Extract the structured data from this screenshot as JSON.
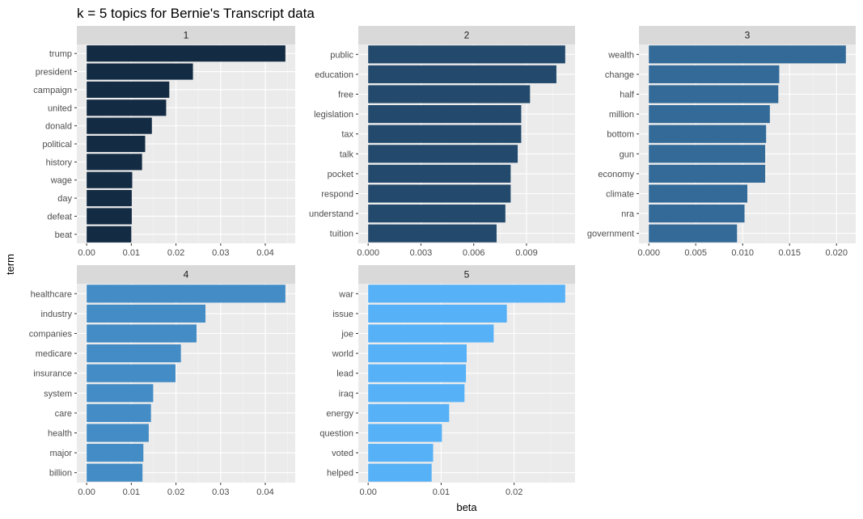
{
  "chart_data": {
    "type": "bar",
    "orientation": "horizontal",
    "title": "k = 5 topics for Bernie's Transcript data",
    "xlabel": "beta",
    "ylabel": "term",
    "grid": true,
    "legend": "none",
    "panels": [
      {
        "label": "1",
        "color": "#132B43",
        "xlim": [
          -0.0022,
          0.0467
        ],
        "ticks": [
          0,
          0.01,
          0.02,
          0.03,
          0.04
        ],
        "tick_labels": [
          "0.00",
          "0.01",
          "0.02",
          "0.03",
          "0.04"
        ],
        "terms": [
          "trump",
          "president",
          "campaign",
          "united",
          "donald",
          "political",
          "history",
          "wage",
          "day",
          "defeat",
          "beat"
        ],
        "values": [
          0.0445,
          0.0238,
          0.0185,
          0.0178,
          0.0146,
          0.0131,
          0.0124,
          0.0102,
          0.0101,
          0.0101,
          0.01
        ]
      },
      {
        "label": "2",
        "color": "#234A6C",
        "xlim": [
          -0.00056,
          0.01176
        ],
        "ticks": [
          0,
          0.003,
          0.006,
          0.009
        ],
        "tick_labels": [
          "0.000",
          "0.003",
          "0.006",
          "0.009"
        ],
        "terms": [
          "public",
          "education",
          "free",
          "legislation",
          "tax",
          "talk",
          "pocket",
          "respond",
          "understand",
          "tuition"
        ],
        "values": [
          0.0112,
          0.0107,
          0.0092,
          0.0087,
          0.0087,
          0.0085,
          0.0081,
          0.0081,
          0.0078,
          0.0073
        ]
      },
      {
        "label": "3",
        "color": "#336A98",
        "xlim": [
          -0.00105,
          0.02205
        ],
        "ticks": [
          0,
          0.005,
          0.01,
          0.015,
          0.02
        ],
        "tick_labels": [
          "0.000",
          "0.005",
          "0.010",
          "0.015",
          "0.020"
        ],
        "terms": [
          "wealth",
          "change",
          "half",
          "million",
          "bottom",
          "gun",
          "economy",
          "climate",
          "nra",
          "government"
        ],
        "values": [
          0.021,
          0.0139,
          0.0138,
          0.0129,
          0.0125,
          0.0124,
          0.0124,
          0.0105,
          0.0102,
          0.0094
        ]
      },
      {
        "label": "4",
        "color": "#438CC5",
        "xlim": [
          -0.0022,
          0.0467
        ],
        "ticks": [
          0,
          0.01,
          0.02,
          0.03,
          0.04
        ],
        "tick_labels": [
          "0.00",
          "0.01",
          "0.02",
          "0.03",
          "0.04"
        ],
        "terms": [
          "healthcare",
          "industry",
          "companies",
          "medicare",
          "insurance",
          "system",
          "care",
          "health",
          "major",
          "billion"
        ],
        "values": [
          0.0445,
          0.0266,
          0.0246,
          0.0211,
          0.0199,
          0.0149,
          0.0144,
          0.0139,
          0.0127,
          0.0125
        ]
      },
      {
        "label": "5",
        "color": "#56B1F7",
        "xlim": [
          -0.00135,
          0.02835
        ],
        "ticks": [
          0,
          0.01,
          0.02
        ],
        "tick_labels": [
          "0.00",
          "0.01",
          "0.02"
        ],
        "terms": [
          "war",
          "issue",
          "joe",
          "world",
          "lead",
          "iraq",
          "energy",
          "question",
          "voted",
          "helped"
        ],
        "values": [
          0.027,
          0.019,
          0.0172,
          0.0135,
          0.0134,
          0.0132,
          0.0111,
          0.0101,
          0.0089,
          0.0087
        ]
      }
    ]
  }
}
